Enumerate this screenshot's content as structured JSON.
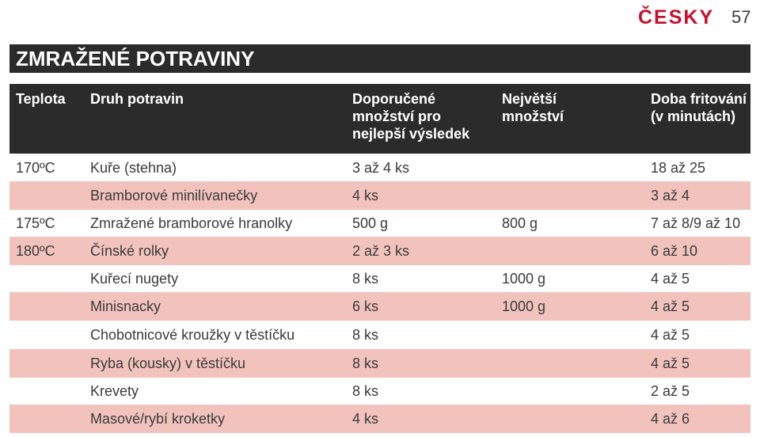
{
  "header": {
    "language": "ČESKY",
    "page_number": "57"
  },
  "section_title": "ZMRAŽENÉ POTRAVINY",
  "table": {
    "headers": [
      "Teplota",
      "Druh potravin",
      "Doporučené množství pro nejlepší výsledek",
      "Největší množství",
      "Doba fritování (v minutách)"
    ],
    "rows": [
      {
        "teplota": "170ºC",
        "druh": "Kuře (stehna)",
        "doporucene": "3 až 4 ks",
        "nejvetsi": "",
        "doba": "18 až 25"
      },
      {
        "teplota": "",
        "druh": "Bramborové minilívanečky",
        "doporucene": "4 ks",
        "nejvetsi": "",
        "doba": "3 až 4"
      },
      {
        "teplota": "175ºC",
        "druh": "Zmražené bramborové hranolky",
        "doporucene": "500 g",
        "nejvetsi": "800 g",
        "doba": "7 až 8/9 až 10"
      },
      {
        "teplota": "180ºC",
        "druh": "Čínské rolky",
        "doporucene": "2 až 3 ks",
        "nejvetsi": "",
        "doba": "6 až 10"
      },
      {
        "teplota": "",
        "druh": "Kuřecí nugety",
        "doporucene": "8 ks",
        "nejvetsi": "1000 g",
        "doba": "4 až 5"
      },
      {
        "teplota": "",
        "druh": "Minisnacky",
        "doporucene": "6 ks",
        "nejvetsi": "1000 g",
        "doba": "4 až 5"
      },
      {
        "teplota": "",
        "druh": "Chobotnicové kroužky v těstíčku",
        "doporucene": "8 ks",
        "nejvetsi": "",
        "doba": "4 až 5"
      },
      {
        "teplota": "",
        "druh": "Ryba (kousky) v těstíčku",
        "doporucene": "8 ks",
        "nejvetsi": "",
        "doba": "4 až 5"
      },
      {
        "teplota": "",
        "druh": "Krevety",
        "doporucene": "8 ks",
        "nejvetsi": "",
        "doba": "2 až 5"
      },
      {
        "teplota": "",
        "druh": "Masové/rybí kroketky",
        "doporucene": "4 ks",
        "nejvetsi": "",
        "doba": "4 až 6"
      }
    ]
  },
  "colors": {
    "accent": "#c8102e",
    "header_bg": "#2b2b2b",
    "row_alt_bg": "#f2c3bd",
    "text": "#3a3a3a"
  }
}
